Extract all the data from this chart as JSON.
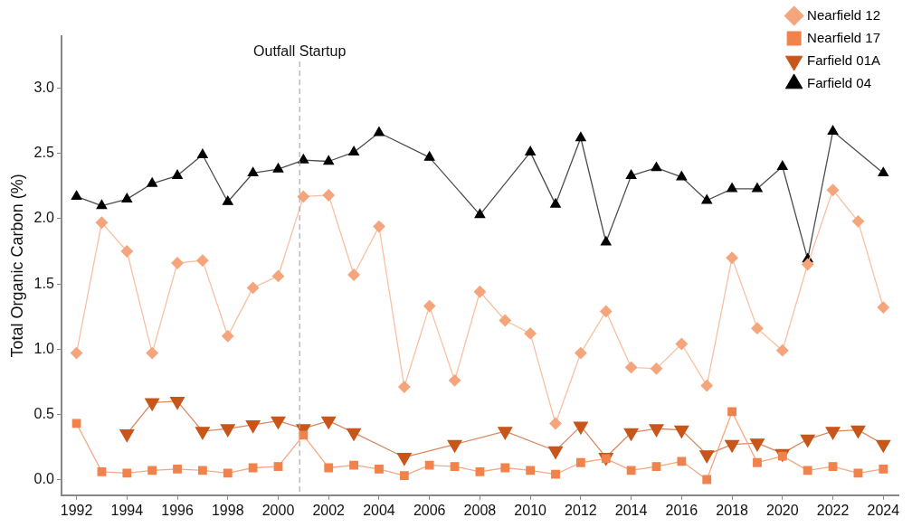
{
  "chart_data": {
    "type": "line",
    "ylabel": "Total Organic Carbon (%)",
    "x": [
      1992,
      1993,
      1994,
      1995,
      1996,
      1997,
      1998,
      1999,
      2000,
      2001,
      2002,
      2003,
      2004,
      2005,
      2006,
      2007,
      2008,
      2009,
      2010,
      2011,
      2012,
      2013,
      2014,
      2015,
      2016,
      2017,
      2018,
      2019,
      2020,
      2021,
      2022,
      2023,
      2024
    ],
    "series": [
      {
        "name": "Nearfield 12",
        "color": "#f5a57c",
        "marker": "diamond",
        "values": [
          0.97,
          1.97,
          1.75,
          0.97,
          1.66,
          1.68,
          1.1,
          1.47,
          1.56,
          2.17,
          2.18,
          1.57,
          1.94,
          0.71,
          1.33,
          0.76,
          1.44,
          1.22,
          1.12,
          0.43,
          0.97,
          1.29,
          0.86,
          0.85,
          1.04,
          0.72,
          1.7,
          1.16,
          0.99,
          1.65,
          2.22,
          1.98,
          1.32
        ]
      },
      {
        "name": "Nearfield 17",
        "color": "#f0824c",
        "marker": "square",
        "values": [
          0.43,
          0.06,
          0.05,
          0.07,
          0.08,
          0.07,
          0.05,
          0.09,
          0.1,
          0.34,
          0.09,
          0.11,
          0.08,
          0.03,
          0.11,
          0.1,
          0.06,
          0.09,
          0.07,
          0.04,
          0.13,
          0.16,
          0.07,
          0.1,
          0.14,
          0.0,
          0.52,
          0.13,
          0.18,
          0.07,
          0.1,
          0.05,
          0.08
        ]
      },
      {
        "name": "Farfield 01A",
        "color": "#c8561a",
        "marker": "triangle-down",
        "values": [
          null,
          null,
          0.35,
          0.59,
          0.6,
          0.37,
          0.39,
          0.42,
          0.45,
          0.39,
          0.45,
          0.36,
          null,
          0.17,
          null,
          0.27,
          null,
          0.37,
          null,
          0.22,
          0.41,
          0.17,
          0.36,
          0.39,
          0.38,
          0.19,
          0.27,
          0.28,
          0.2,
          0.31,
          0.37,
          0.38,
          0.27
        ]
      },
      {
        "name": "Farfield 04",
        "color": "#000000",
        "marker": "triangle",
        "values": [
          2.17,
          2.1,
          2.15,
          2.27,
          2.33,
          2.49,
          2.13,
          2.35,
          2.38,
          2.45,
          2.44,
          2.51,
          2.66,
          null,
          2.47,
          null,
          2.03,
          null,
          2.51,
          2.11,
          2.62,
          1.82,
          2.33,
          2.39,
          2.32,
          2.14,
          2.23,
          2.23,
          2.4,
          1.69,
          2.67,
          null,
          2.35
        ]
      }
    ],
    "xlim": [
      1991.4,
      2024.6
    ],
    "xticks": [
      1992,
      1994,
      1996,
      1998,
      2000,
      2002,
      2004,
      2006,
      2008,
      2010,
      2012,
      2014,
      2016,
      2018,
      2020,
      2022,
      2024
    ],
    "ylim": [
      -0.12,
      3.4
    ],
    "yticks": [
      {
        "value": 0,
        "label": "0.0"
      },
      {
        "value": 0.5,
        "label": "0.5"
      },
      {
        "value": 1,
        "label": "1.0"
      },
      {
        "value": 1.5,
        "label": "1.5"
      },
      {
        "value": 2,
        "label": "2.0"
      },
      {
        "value": 2.5,
        "label": "2.5"
      },
      {
        "value": 3,
        "label": "3.0"
      }
    ],
    "ref_lines": [
      {
        "axis": "x",
        "value": 2000.85,
        "label": "Outfall Startup",
        "color": "#aaaaaa",
        "line_style": "dashed"
      }
    ],
    "legend": "top right",
    "grid": false,
    "line_style": "solid"
  }
}
